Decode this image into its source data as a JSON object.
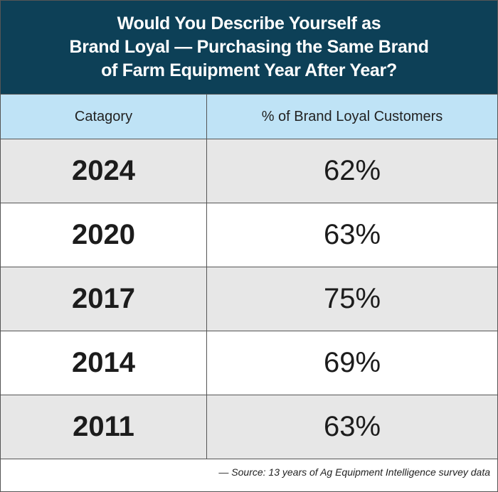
{
  "header": {
    "title": [
      "Would You Describe Yourself as",
      "Brand Loyal — Purchasing the Same Brand",
      "of Farm Equipment Year After Year?"
    ]
  },
  "table": {
    "columns": [
      "Catagory",
      "% of Brand Loyal Customers"
    ],
    "rows": [
      [
        "2024",
        "62%"
      ],
      [
        "2020",
        "63%"
      ],
      [
        "2017",
        "75%"
      ],
      [
        "2014",
        "69%"
      ],
      [
        "2011",
        "63%"
      ]
    ]
  },
  "footer": {
    "source": "— Source: 13 years of Ag Equipment Intelligence survey data"
  }
}
